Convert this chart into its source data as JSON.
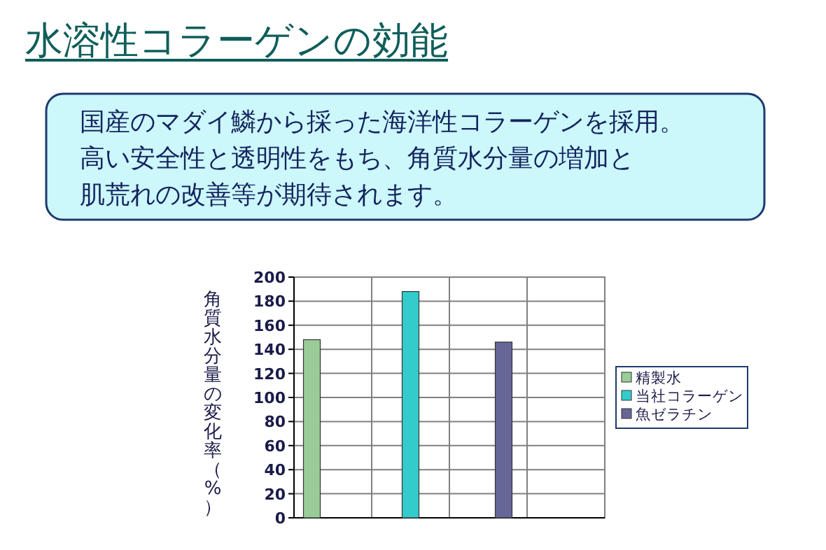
{
  "chart_data": {
    "type": "bar",
    "title": "水溶性コラーゲンの効能",
    "subtitle": "国産のマダイ鱗から採った海洋性コラーゲンを採用。",
    "annotations": [
      "高い安全性と透明性をもち、角質水分量の増加と肌荒れの改善等が期待されます。"
    ],
    "ylabel": "角質水分量の変化率（%）",
    "categories": [
      null,
      null,
      null,
      null
    ],
    "series": [
      {
        "name": "精製水",
        "color": "#99cc99",
        "values": [
          148,
          null,
          null,
          null
        ]
      },
      {
        "name": "当社コラーゲン",
        "color": "#33cccc",
        "values": [
          null,
          188,
          null,
          null
        ]
      },
      {
        "name": "魚ゼラチン",
        "color": "#666699",
        "values": [
          null,
          null,
          146,
          null
        ]
      }
    ],
    "ylim": [
      0,
      200
    ],
    "yticks": [
      0,
      20,
      40,
      60,
      80,
      100,
      120,
      140,
      160,
      180,
      200
    ],
    "grid": true,
    "legend": "right"
  }
}
